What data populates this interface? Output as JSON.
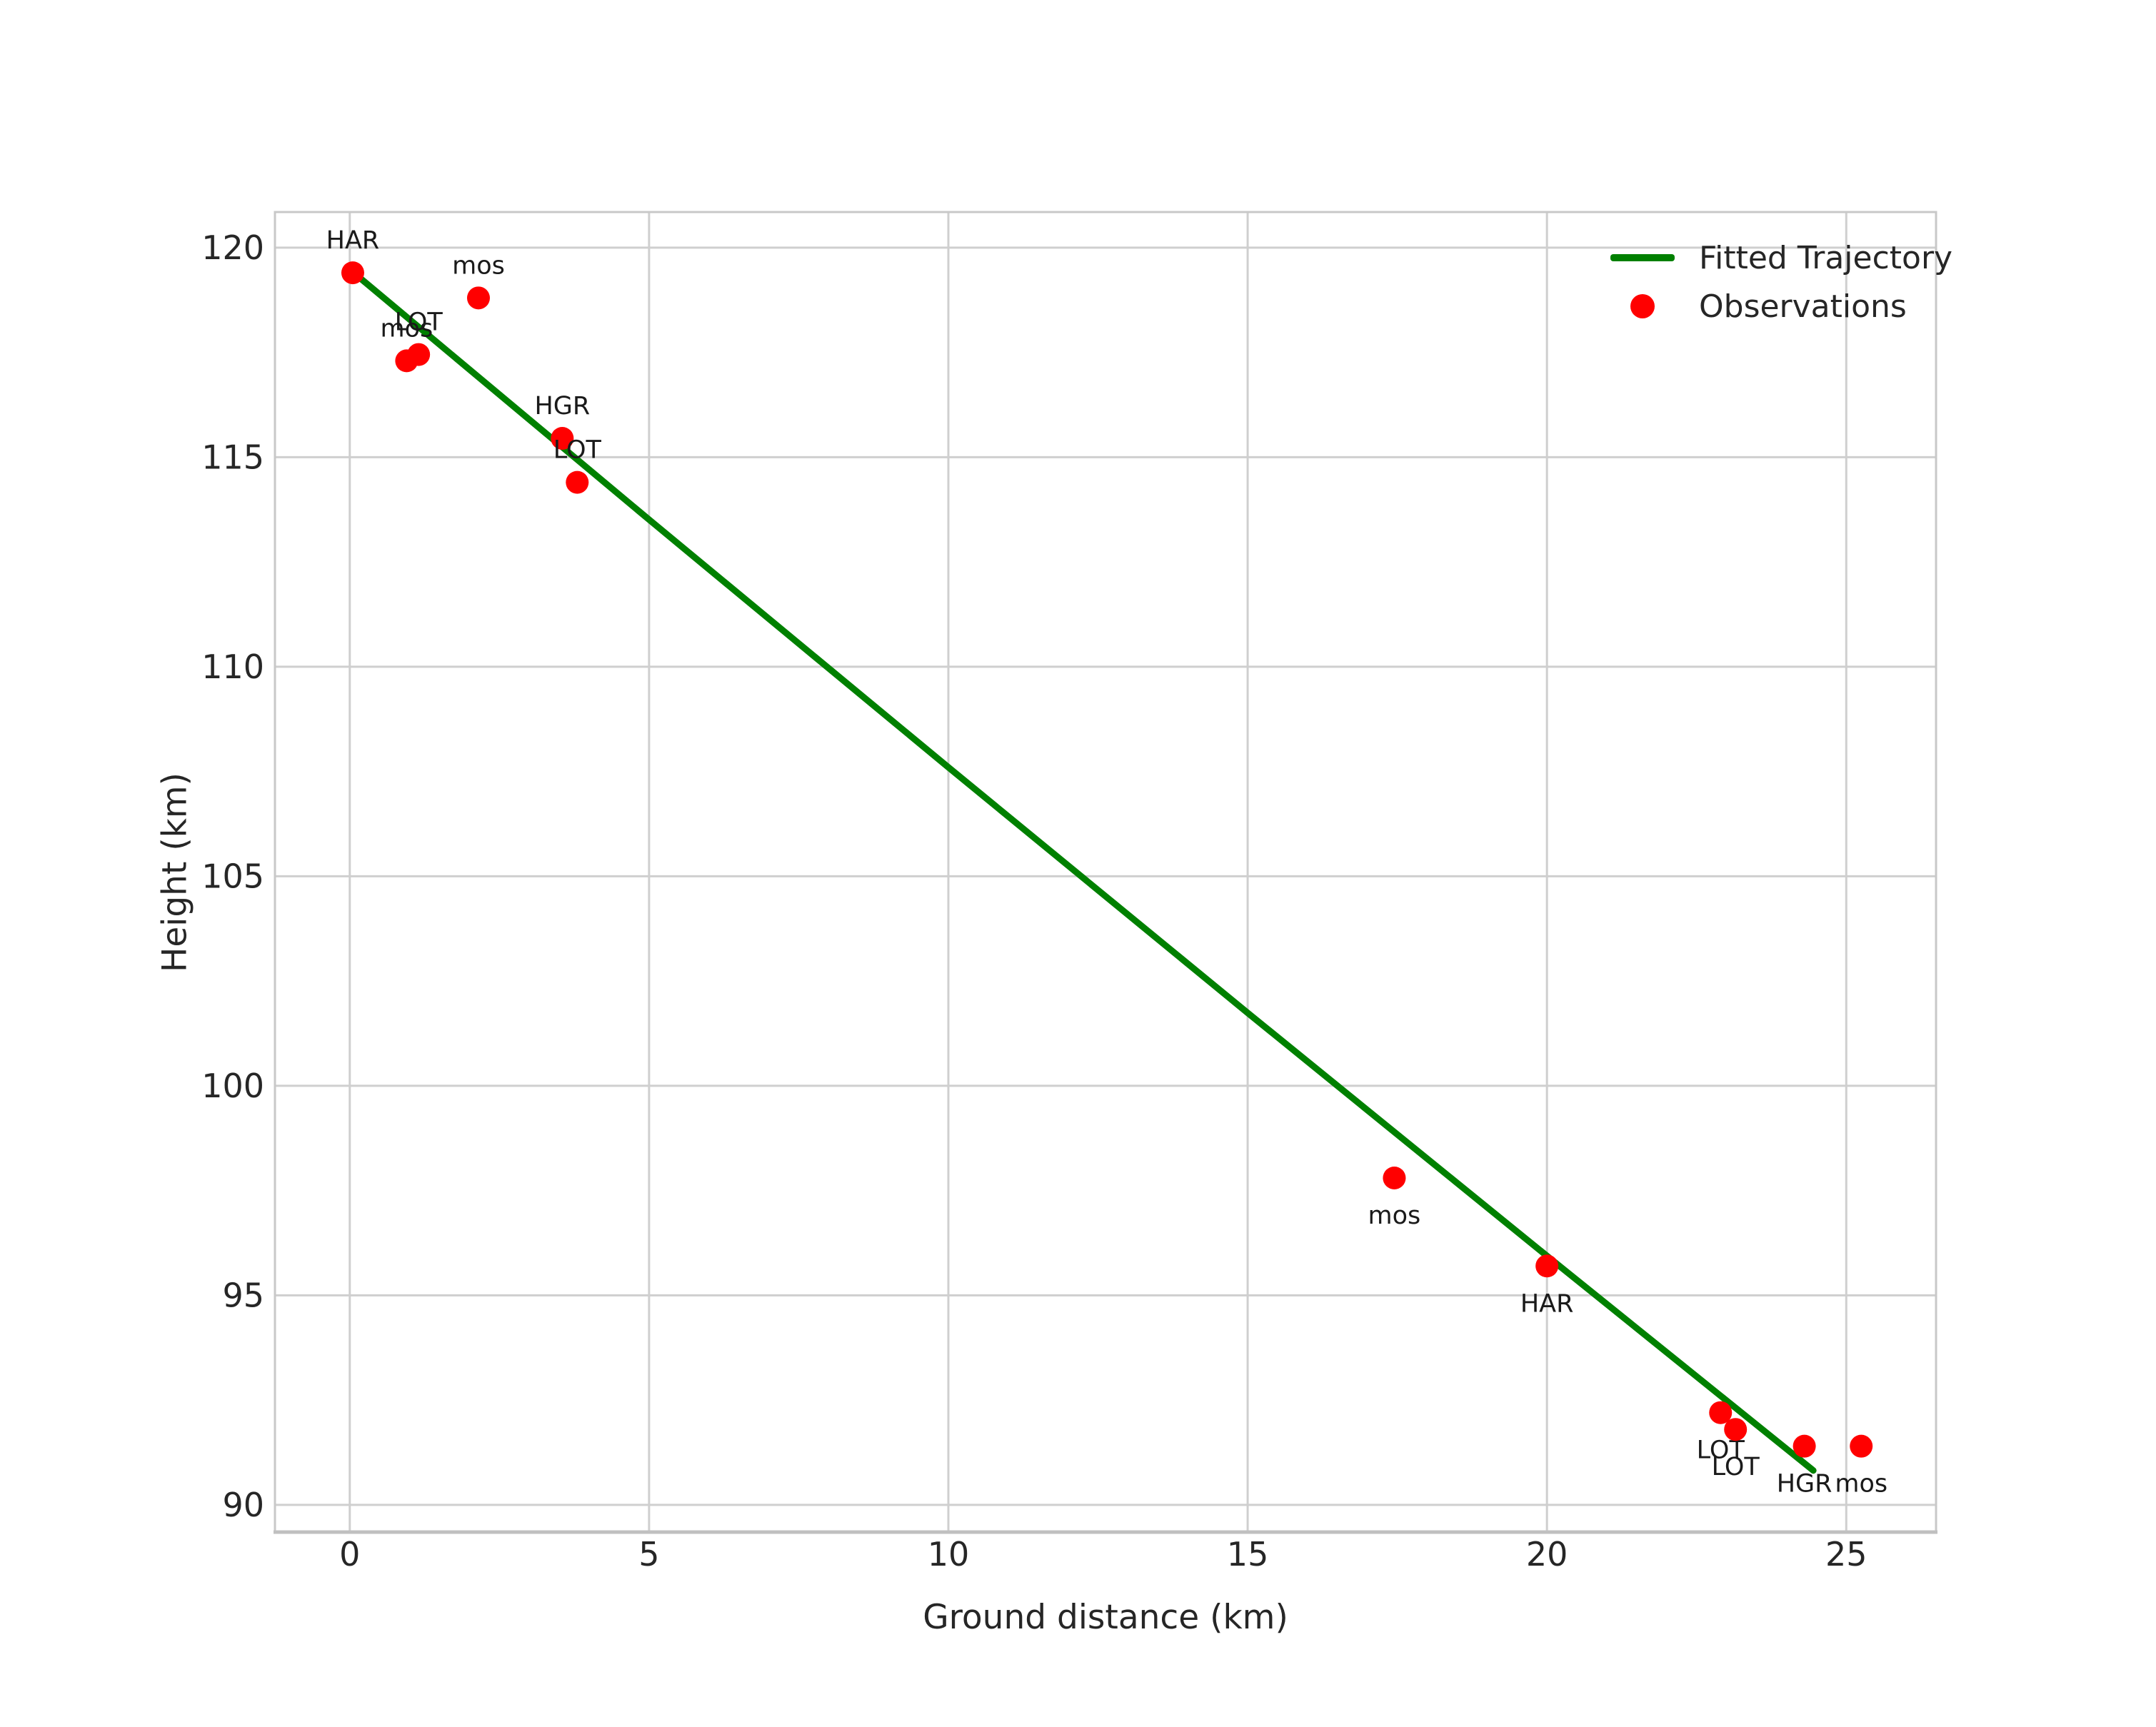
{
  "chart_data": {
    "type": "scatter",
    "title": "",
    "xlabel": "Ground distance (km)",
    "ylabel": "Height (km)",
    "xlim": [
      -1.25,
      26.5
    ],
    "ylim": [
      89.35,
      120.85
    ],
    "xticks": [
      0,
      5,
      10,
      15,
      20,
      25
    ],
    "yticks": [
      90,
      95,
      100,
      105,
      110,
      115,
      120
    ],
    "grid": true,
    "style": {
      "marker_color": "#ff0000",
      "line_color": "#008000",
      "grid_color": "#cfcfcf",
      "frame_color": "#c8c8c8",
      "bottom_spine_color": "#c0c0c0",
      "tick_label_color": "#262626",
      "point_label_color": "#1a1a1a",
      "background": "#ffffff"
    },
    "legend": {
      "position": "upper right",
      "entries": [
        {
          "label": "Fitted Trajectory",
          "type": "line",
          "color": "#008000"
        },
        {
          "label": "Observations",
          "type": "marker",
          "color": "#ff0000"
        }
      ]
    },
    "series": [
      {
        "name": "Observations",
        "type": "scatter",
        "color": "#ff0000",
        "points": [
          {
            "x": 0.05,
            "y": 119.4,
            "label": "HAR",
            "label_side": "above"
          },
          {
            "x": 2.15,
            "y": 118.8,
            "label": "mos",
            "label_side": "above"
          },
          {
            "x": 0.95,
            "y": 117.3,
            "label": "mos",
            "label_side": "above"
          },
          {
            "x": 1.15,
            "y": 117.45,
            "label": "LOT",
            "label_side": "above"
          },
          {
            "x": 3.55,
            "y": 115.45,
            "label": "HGR",
            "label_side": "above"
          },
          {
            "x": 3.8,
            "y": 114.4,
            "label": "LOT",
            "label_side": "above"
          },
          {
            "x": 17.45,
            "y": 97.8,
            "label": "mos",
            "label_side": "below"
          },
          {
            "x": 20.0,
            "y": 95.7,
            "label": "HAR",
            "label_side": "below"
          },
          {
            "x": 22.9,
            "y": 92.2,
            "label": "LOT",
            "label_side": "below"
          },
          {
            "x": 23.15,
            "y": 91.8,
            "label": "LOT",
            "label_side": "below"
          },
          {
            "x": 24.3,
            "y": 91.4,
            "label": "HGR",
            "label_side": "below"
          },
          {
            "x": 25.25,
            "y": 91.4,
            "label": "mos",
            "label_side": "below"
          }
        ]
      },
      {
        "name": "Fitted Trajectory",
        "type": "line",
        "color": "#008000",
        "points": [
          {
            "x": 0.05,
            "y": 119.42
          },
          {
            "x": 5.0,
            "y": 113.51
          },
          {
            "x": 10.0,
            "y": 107.6
          },
          {
            "x": 15.0,
            "y": 101.74
          },
          {
            "x": 20.0,
            "y": 95.94
          },
          {
            "x": 24.45,
            "y": 90.82
          }
        ]
      }
    ]
  }
}
